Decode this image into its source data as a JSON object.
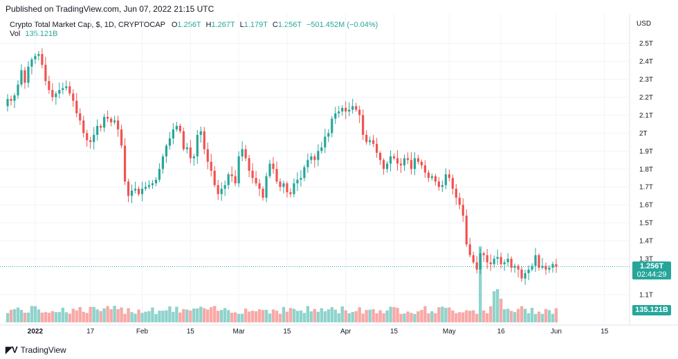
{
  "header": {
    "published": "Published on TradingView.com, Jun 07, 2022 21:15 UTC"
  },
  "legend": {
    "symbol": "Crypto Total Market Cap, $, 1D, CRYPTOCAP",
    "o_label": "O",
    "o_value": "1.256T",
    "h_label": "H",
    "h_value": "1.267T",
    "l_label": "L",
    "l_value": "1.179T",
    "c_label": "C",
    "c_value": "1.256T",
    "change": "−501.452M (−0.04%)",
    "vol_label": "Vol",
    "vol_value": "135.121B"
  },
  "badges": {
    "price": "1.256T",
    "countdown": "02:44:29",
    "volume": "135.121B"
  },
  "footer": {
    "brand": "TradingView"
  },
  "colors": {
    "up": "#26a69a",
    "down": "#ef5350",
    "vol_up": "#8fd3cc",
    "vol_down": "#f7a9a7"
  },
  "chart_data": {
    "type": "candlestick",
    "currency": "USD",
    "y_tick_labels": [
      "1.1T",
      "1.3T",
      "1.4T",
      "1.5T",
      "1.6T",
      "1.7T",
      "1.8T",
      "1.9T",
      "2T",
      "2.1T",
      "2.2T",
      "2.3T",
      "2.4T",
      "2.5T"
    ],
    "y_tick_values": [
      1.1,
      1.3,
      1.4,
      1.5,
      1.6,
      1.7,
      1.8,
      1.9,
      2.0,
      2.1,
      2.2,
      2.3,
      2.4,
      2.5
    ],
    "ylim": [
      1.0,
      2.6
    ],
    "x_tick_labels": [
      "2022",
      "17",
      "Feb",
      "15",
      "Mar",
      "15",
      "Apr",
      "15",
      "May",
      "16",
      "Jun",
      "15"
    ],
    "x_tick_days": [
      0,
      16,
      31,
      45,
      59,
      73,
      90,
      104,
      120,
      135,
      151,
      165
    ],
    "current_price": 1.256,
    "candles_start": "2021-12-23",
    "close": [
      2.19,
      2.18,
      2.21,
      2.27,
      2.35,
      2.28,
      2.37,
      2.41,
      2.43,
      2.44,
      2.38,
      2.29,
      2.24,
      2.2,
      2.22,
      2.24,
      2.25,
      2.26,
      2.22,
      2.18,
      2.11,
      2.07,
      2.0,
      1.96,
      1.95,
      1.99,
      2.04,
      2.03,
      2.09,
      2.08,
      2.06,
      2.07,
      2.02,
      1.93,
      1.73,
      1.65,
      1.68,
      1.69,
      1.66,
      1.69,
      1.7,
      1.71,
      1.72,
      1.74,
      1.8,
      1.87,
      1.93,
      1.97,
      2.02,
      2.04,
      2.01,
      1.91,
      1.92,
      1.86,
      1.87,
      1.99,
      2.01,
      1.91,
      1.84,
      1.79,
      1.71,
      1.66,
      1.69,
      1.71,
      1.77,
      1.76,
      1.72,
      1.87,
      1.91,
      1.86,
      1.79,
      1.75,
      1.72,
      1.69,
      1.64,
      1.76,
      1.83,
      1.8,
      1.73,
      1.7,
      1.72,
      1.67,
      1.66,
      1.72,
      1.74,
      1.75,
      1.81,
      1.85,
      1.87,
      1.85,
      1.9,
      1.92,
      1.98,
      2.0,
      2.08,
      2.11,
      2.12,
      2.14,
      2.12,
      2.13,
      2.15,
      2.13,
      2.1,
      1.99,
      1.95,
      1.96,
      1.94,
      1.89,
      1.85,
      1.8,
      1.83,
      1.87,
      1.86,
      1.83,
      1.82,
      1.86,
      1.85,
      1.8,
      1.86,
      1.84,
      1.82,
      1.78,
      1.75,
      1.76,
      1.73,
      1.7,
      1.71,
      1.77,
      1.75,
      1.69,
      1.64,
      1.6,
      1.54,
      1.38,
      1.32,
      1.28,
      1.24,
      1.33,
      1.32,
      1.28,
      1.27,
      1.3,
      1.31,
      1.27,
      1.28,
      1.3,
      1.25,
      1.26,
      1.24,
      1.19,
      1.22,
      1.24,
      1.26,
      1.32,
      1.25,
      1.26,
      1.24,
      1.25,
      1.27,
      1.256
    ]
  }
}
